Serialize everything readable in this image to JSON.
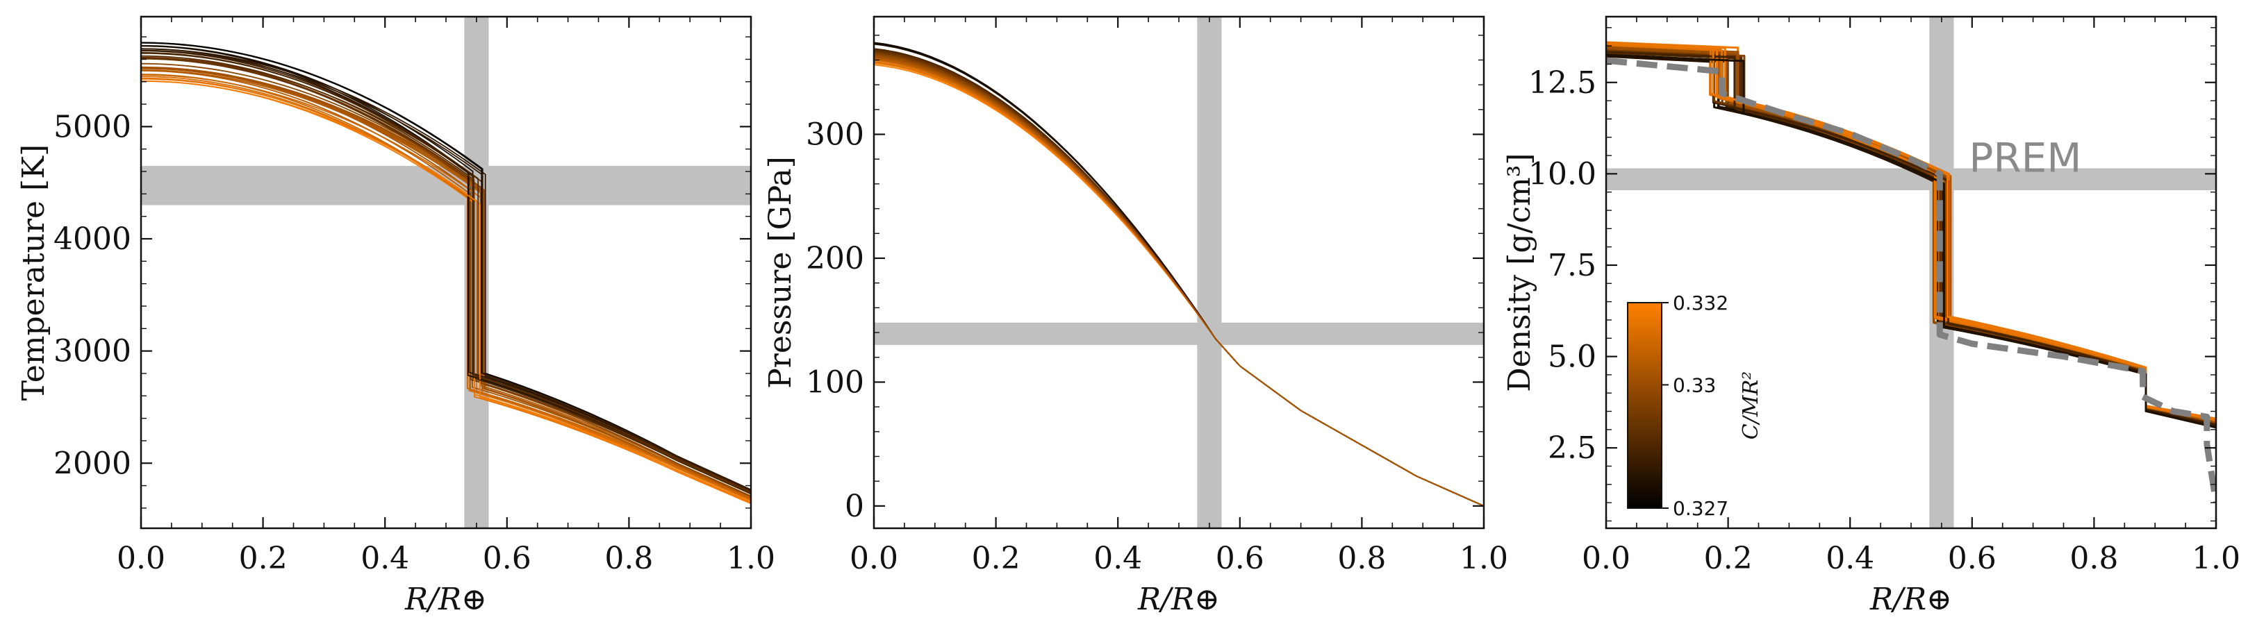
{
  "chart_data": [
    {
      "type": "line",
      "ylabel": "Temperature [K]",
      "xlabel": "R/R⊕",
      "xlim": [
        0,
        1
      ],
      "ylim": [
        1420,
        5980
      ],
      "xticks": [
        "0.0",
        "0.2",
        "0.4",
        "0.6",
        "0.8",
        "1.0"
      ],
      "yticks": [
        2000,
        3000,
        4000,
        5000
      ],
      "ytick_labels": [
        "2000",
        "3000",
        "4000",
        "5000"
      ],
      "bands": {
        "x": [
          0.53,
          0.57
        ],
        "y": [
          4300,
          4650
        ]
      },
      "profile": {
        "core_radius_range": [
          0.535,
          0.565
        ],
        "center_range": [
          5390,
          5760
        ],
        "cmb_inner_range": [
          4300,
          4640
        ],
        "cmb_outer_range": [
          2590,
          2840
        ],
        "knee_x": 0.88,
        "knee_range": [
          1920,
          2080
        ],
        "surface_range": [
          1640,
          1780
        ]
      },
      "curve_count": 32
    },
    {
      "type": "line",
      "ylabel": "Pressure [GPa]",
      "xlabel": "R/R⊕",
      "xlim": [
        0,
        1
      ],
      "ylim": [
        -18,
        395
      ],
      "xticks": [
        "0.0",
        "0.2",
        "0.4",
        "0.6",
        "0.8",
        "1.0"
      ],
      "yticks": [
        0,
        100,
        200,
        300
      ],
      "ytick_labels": [
        "0",
        "100",
        "200",
        "300"
      ],
      "bands": {
        "x": [
          0.53,
          0.57
        ],
        "y": [
          130,
          148
        ]
      },
      "profile": {
        "center_range": [
          356,
          375
        ],
        "points": [
          [
            0.2,
            0.92
          ],
          [
            0.35,
            0.72
          ],
          [
            0.45,
            0.535
          ],
          [
            0.56,
            0.36
          ]
        ],
        "cmb_value": 135,
        "outer_points": [
          [
            0.7,
            77
          ],
          [
            0.89,
            24
          ],
          [
            1.0,
            0
          ]
        ]
      },
      "curve_count": 32
    },
    {
      "type": "line",
      "ylabel": "Density [g/cm³]",
      "xlabel": "R/R⊕",
      "xlim": [
        0,
        1
      ],
      "ylim": [
        0.3,
        14.3
      ],
      "xticks": [
        "0.0",
        "0.2",
        "0.4",
        "0.6",
        "0.8",
        "1.0"
      ],
      "yticks": [
        2.5,
        5.0,
        7.5,
        10.0,
        12.5
      ],
      "ytick_labels": [
        "2.5",
        "5.0",
        "7.5",
        "10.0",
        "12.5"
      ],
      "bands": {
        "x": [
          0.53,
          0.57
        ],
        "y": [
          9.55,
          10.15
        ]
      },
      "annotation": "PREM",
      "reference_series": {
        "name": "PREM",
        "x": [
          0,
          0.19,
          0.19,
          0.3,
          0.4,
          0.5,
          0.547,
          0.547,
          0.6,
          0.75,
          0.88,
          0.88,
          0.93,
          0.985,
          0.985,
          1.0
        ],
        "y": [
          13.1,
          12.8,
          12.2,
          11.6,
          11.1,
          10.4,
          10.0,
          5.6,
          5.35,
          5.0,
          4.6,
          3.9,
          3.5,
          3.35,
          2.6,
          1.0
        ]
      },
      "profile": {
        "icb_range": [
          0.17,
          0.23
        ],
        "center_range": [
          13.2,
          13.6
        ],
        "icb_outer_range": [
          11.6,
          12.2
        ],
        "cmb_inner_range": [
          9.7,
          10.0
        ],
        "cmb_outer_range": [
          5.8,
          6.1
        ],
        "mantle_break": 0.885,
        "pre_break_range": [
          4.5,
          4.7
        ],
        "post_break_range": [
          3.5,
          3.65
        ],
        "surface_range": [
          3.05,
          3.3
        ]
      },
      "curve_count": 32,
      "colorbar": {
        "label": "C/MR²",
        "ticks": [
          "0.332",
          "0.33",
          "0.327"
        ],
        "range": [
          0.327,
          0.332
        ],
        "colors": [
          "#000000",
          "#ff8000"
        ]
      }
    }
  ],
  "colors": {
    "band": "#c0c0c0",
    "prem": "#808080",
    "low": "#000000",
    "high": "#ff8000",
    "axis": "#111111"
  }
}
